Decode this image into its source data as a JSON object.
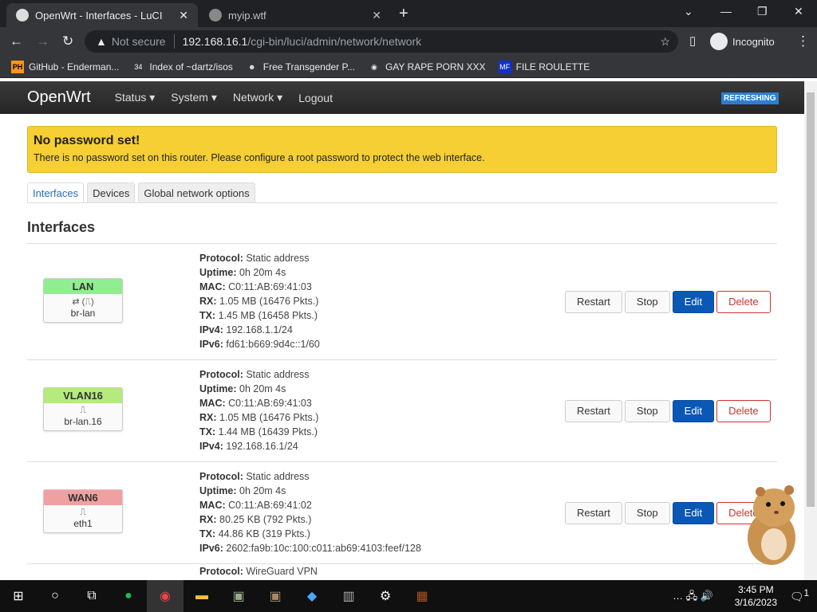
{
  "browser": {
    "tabs": [
      {
        "title": "OpenWrt - Interfaces - LuCI",
        "active": true
      },
      {
        "title": "myip.wtf",
        "active": false
      }
    ],
    "not_secure": "Not secure",
    "url_host": "192.168.16.1",
    "url_path": "/cgi-bin/luci/admin/network/network",
    "profile": "Incognito",
    "bookmarks": [
      {
        "icon": "PH",
        "label": "GitHub - Enderman..."
      },
      {
        "icon": "34",
        "label": "Index of ~dartz/isos"
      },
      {
        "icon": "☻",
        "label": "Free Transgender P..."
      },
      {
        "icon": "◉",
        "label": "GAY RAPE PORN XXX"
      },
      {
        "icon": "MF",
        "label": "FILE ROULETTE"
      }
    ]
  },
  "luci": {
    "brand": "OpenWrt",
    "menu": [
      "Status ▾",
      "System ▾",
      "Network ▾",
      "Logout"
    ],
    "refreshing": "REFRESHING",
    "alert_title": "No password set!",
    "alert_text": "There is no password set on this router. Please configure a root password to protect the web interface.",
    "tabs": [
      "Interfaces",
      "Devices",
      "Global network options"
    ],
    "heading": "Interfaces",
    "buttons": {
      "restart": "Restart",
      "stop": "Stop",
      "edit": "Edit",
      "delete": "Delete"
    },
    "interfaces": [
      {
        "name": "LAN",
        "color": "#90ee90",
        "icons": "⇄ (⎍)",
        "device": "br-lan",
        "fields": [
          [
            "Protocol:",
            "Static address"
          ],
          [
            "Uptime:",
            "0h 20m 4s"
          ],
          [
            "MAC:",
            "C0:11:AB:69:41:03"
          ],
          [
            "RX:",
            "1.05 MB (16476 Pkts.)"
          ],
          [
            "TX:",
            "1.45 MB (16458 Pkts.)"
          ],
          [
            "IPv4:",
            "192.168.1.1/24"
          ],
          [
            "IPv6:",
            "fd61:b669:9d4c::1/60"
          ]
        ]
      },
      {
        "name": "VLAN16",
        "color": "#b5ea7d",
        "icons": "⎍",
        "device": "br-lan.16",
        "fields": [
          [
            "Protocol:",
            "Static address"
          ],
          [
            "Uptime:",
            "0h 20m 4s"
          ],
          [
            "MAC:",
            "C0:11:AB:69:41:03"
          ],
          [
            "RX:",
            "1.05 MB (16476 Pkts.)"
          ],
          [
            "TX:",
            "1.44 MB (16439 Pkts.)"
          ],
          [
            "IPv4:",
            "192.168.16.1/24"
          ]
        ]
      },
      {
        "name": "WAN6",
        "color": "#f0a0a0",
        "icons": "⎍",
        "device": "eth1",
        "fields": [
          [
            "Protocol:",
            "Static address"
          ],
          [
            "Uptime:",
            "0h 20m 4s"
          ],
          [
            "MAC:",
            "C0:11:AB:69:41:02"
          ],
          [
            "RX:",
            "80.25 KB (792 Pkts.)"
          ],
          [
            "TX:",
            "44.86 KB (319 Pkts.)"
          ],
          [
            "IPv6:",
            "2602:fa9b:10c:100:c011:ab69:4103:feef/128"
          ]
        ]
      }
    ],
    "partial_row": {
      "label": "Protocol:",
      "value": "WireGuard VPN"
    }
  },
  "taskbar": {
    "time": "3:45 PM",
    "date": "3/16/2023",
    "notifications": "1"
  }
}
